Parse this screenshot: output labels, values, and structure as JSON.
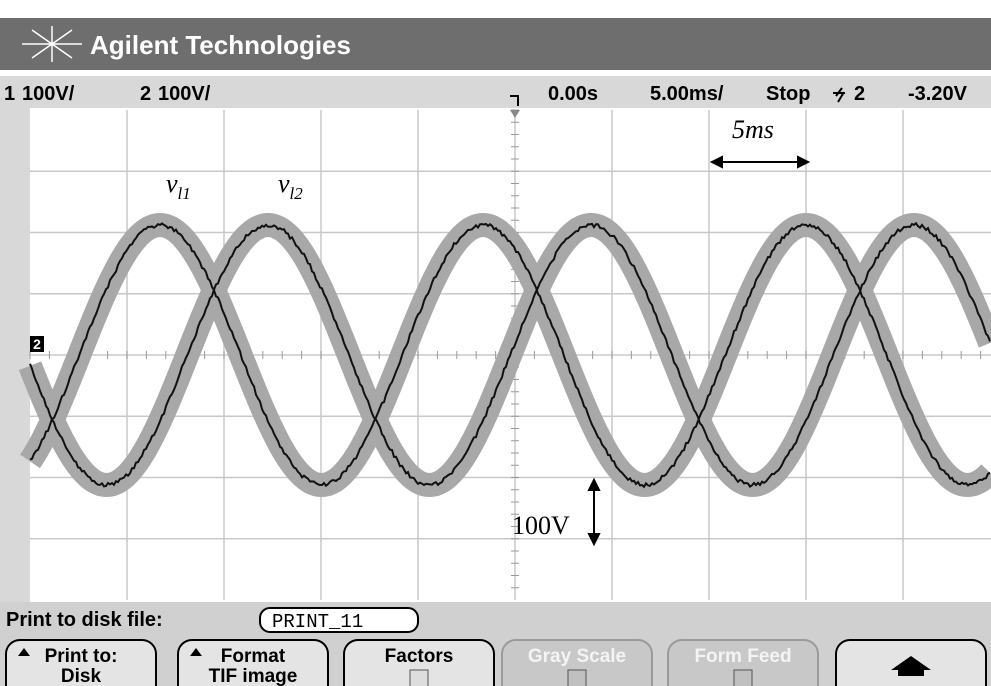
{
  "header": {
    "brand": "Agilent Technologies"
  },
  "status": {
    "ch1": "1",
    "ch1_scale": "100V/",
    "ch2": "2",
    "ch2_scale": "100V/",
    "delay": "0.00s",
    "timebase": "5.00ms/",
    "run_state": "Stop",
    "trigger_channel": "2",
    "trigger_level": "-3.20V"
  },
  "screen": {
    "ground_marker": "2"
  },
  "annotations": {
    "wave1": {
      "symbol": "v",
      "subscript": "l1"
    },
    "wave2": {
      "symbol": "v",
      "subscript": "l2"
    },
    "time_span": "5ms",
    "voltage_span": "100V"
  },
  "footer": {
    "file_label": "Print to disk file:",
    "file_name": "PRINT_11",
    "softkeys": [
      {
        "line1": "Print to:",
        "line2": "Disk"
      },
      {
        "line1": "Format",
        "line2": "TIF image"
      },
      {
        "line1": "Factors"
      },
      {
        "line1": "Gray Scale"
      },
      {
        "line1": "Form Feed"
      }
    ]
  }
}
